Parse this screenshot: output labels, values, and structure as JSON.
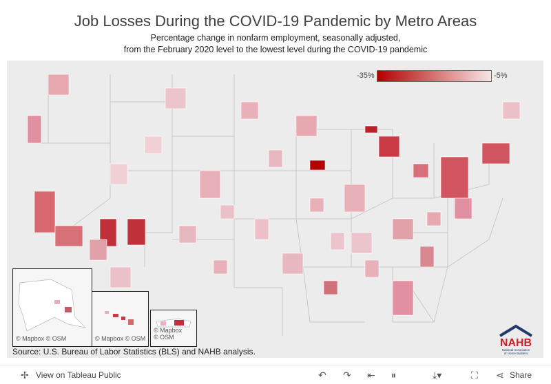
{
  "title": "Job Losses During the COVID-19 Pandemic by Metro Areas",
  "subtitle_line1": "Percentage change in nonfarm employment, seasonally adjusted,",
  "subtitle_line2": "from the February 2020 level to the lowest level during the COVID-19 pandemic",
  "legend": {
    "low_label": "-35%",
    "high_label": "-5%",
    "low_color": "#b30000",
    "high_color": "#f6e6e6"
  },
  "attribution": {
    "mapbox": "© Mapbox",
    "osm": "© OSM"
  },
  "source": "Source: U.S. Bureau of Labor Statistics (BLS) and NAHB analysis.",
  "logo": {
    "text": "NAHB",
    "line1": "National Association",
    "line2": "of Home Builders"
  },
  "footer": {
    "view_label": "View on Tableau Public",
    "share_label": "Share"
  },
  "icons": [
    "tableau-icon",
    "undo-icon",
    "redo-icon",
    "revert-icon",
    "pause-icon",
    "download-icon",
    "fullscreen-icon",
    "share-icon"
  ]
}
